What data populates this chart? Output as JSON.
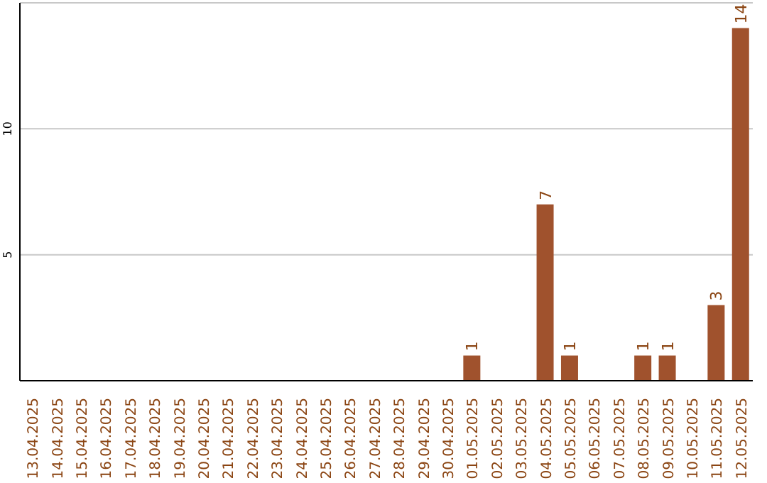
{
  "chart_data": {
    "type": "bar",
    "categories": [
      "13.04.2025",
      "14.04.2025",
      "15.04.2025",
      "16.04.2025",
      "17.04.2025",
      "18.04.2025",
      "19.04.2025",
      "20.04.2025",
      "21.04.2025",
      "22.04.2025",
      "23.04.2025",
      "24.04.2025",
      "25.04.2025",
      "26.04.2025",
      "27.04.2025",
      "28.04.2025",
      "29.04.2025",
      "30.04.2025",
      "01.05.2025",
      "02.05.2025",
      "03.05.2025",
      "04.05.2025",
      "05.05.2025",
      "06.05.2025",
      "07.05.2025",
      "08.05.2025",
      "09.05.2025",
      "10.05.2025",
      "11.05.2025",
      "12.05.2025"
    ],
    "values": [
      0,
      0,
      0,
      0,
      0,
      0,
      0,
      0,
      0,
      0,
      0,
      0,
      0,
      0,
      0,
      0,
      0,
      0,
      1,
      0,
      0,
      7,
      1,
      0,
      0,
      1,
      1,
      0,
      3,
      14
    ],
    "value_labels": [
      null,
      null,
      null,
      null,
      null,
      null,
      null,
      null,
      null,
      null,
      null,
      null,
      null,
      null,
      null,
      null,
      null,
      null,
      "1",
      null,
      null,
      "7",
      "1",
      null,
      null,
      "1",
      "1",
      null,
      "3",
      "14"
    ],
    "color": "#a0522d",
    "ylim": [
      0,
      15
    ],
    "yticks": [
      5,
      10
    ],
    "grid": "y"
  }
}
